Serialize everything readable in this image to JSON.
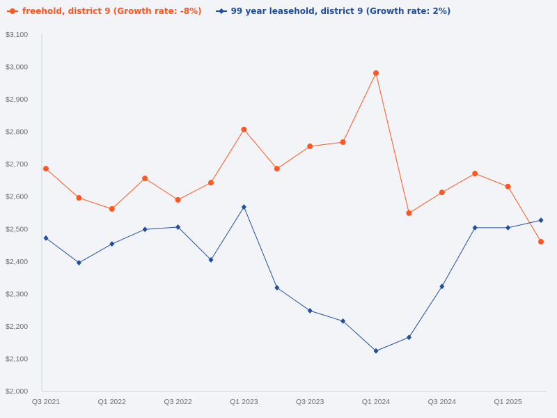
{
  "chart_data": {
    "type": "line",
    "title": "",
    "xlabel": "",
    "ylabel": "",
    "ylim": [
      2000,
      3100
    ],
    "yticks": [
      "$2,000",
      "$2,100",
      "$2,200",
      "$2,300",
      "$2,400",
      "$2,500",
      "$2,600",
      "$2,700",
      "$2,800",
      "$2,900",
      "$3,000",
      "$3,100"
    ],
    "ytick_values": [
      2000,
      2100,
      2200,
      2300,
      2400,
      2500,
      2600,
      2700,
      2800,
      2900,
      3000,
      3100
    ],
    "x": [
      "Q3 2021",
      "Q4 2021",
      "Q1 2022",
      "Q2 2022",
      "Q3 2022",
      "Q4 2022",
      "Q1 2023",
      "Q2 2023",
      "Q3 2023",
      "Q4 2023",
      "Q1 2024",
      "Q2 2024",
      "Q3 2024",
      "Q4 2024",
      "Q1 2025",
      "Q2 2025"
    ],
    "xtick_labels": [
      "Q3 2021",
      "Q1 2022",
      "Q3 2022",
      "Q1 2023",
      "Q3 2023",
      "Q1 2024",
      "Q3 2024",
      "Q1 2025"
    ],
    "grid": false,
    "legend_position": "top-left",
    "series": [
      {
        "name": "freehold, district 9 (Growth rate: -8%)",
        "color": "#ff5722",
        "marker": "circle",
        "values": [
          2685,
          2595,
          2561,
          2655,
          2589,
          2642,
          2806,
          2685,
          2754,
          2767,
          2980,
          2548,
          2612,
          2670,
          2630,
          2460
        ]
      },
      {
        "name": "99 year leasehold, district 9 (Growth rate: 2%)",
        "color": "#1f4e9e",
        "marker": "diamond",
        "values": [
          2471,
          2395,
          2453,
          2498,
          2505,
          2404,
          2567,
          2318,
          2247,
          2215,
          2123,
          2165,
          2322,
          2503,
          2503,
          2526
        ]
      }
    ]
  }
}
